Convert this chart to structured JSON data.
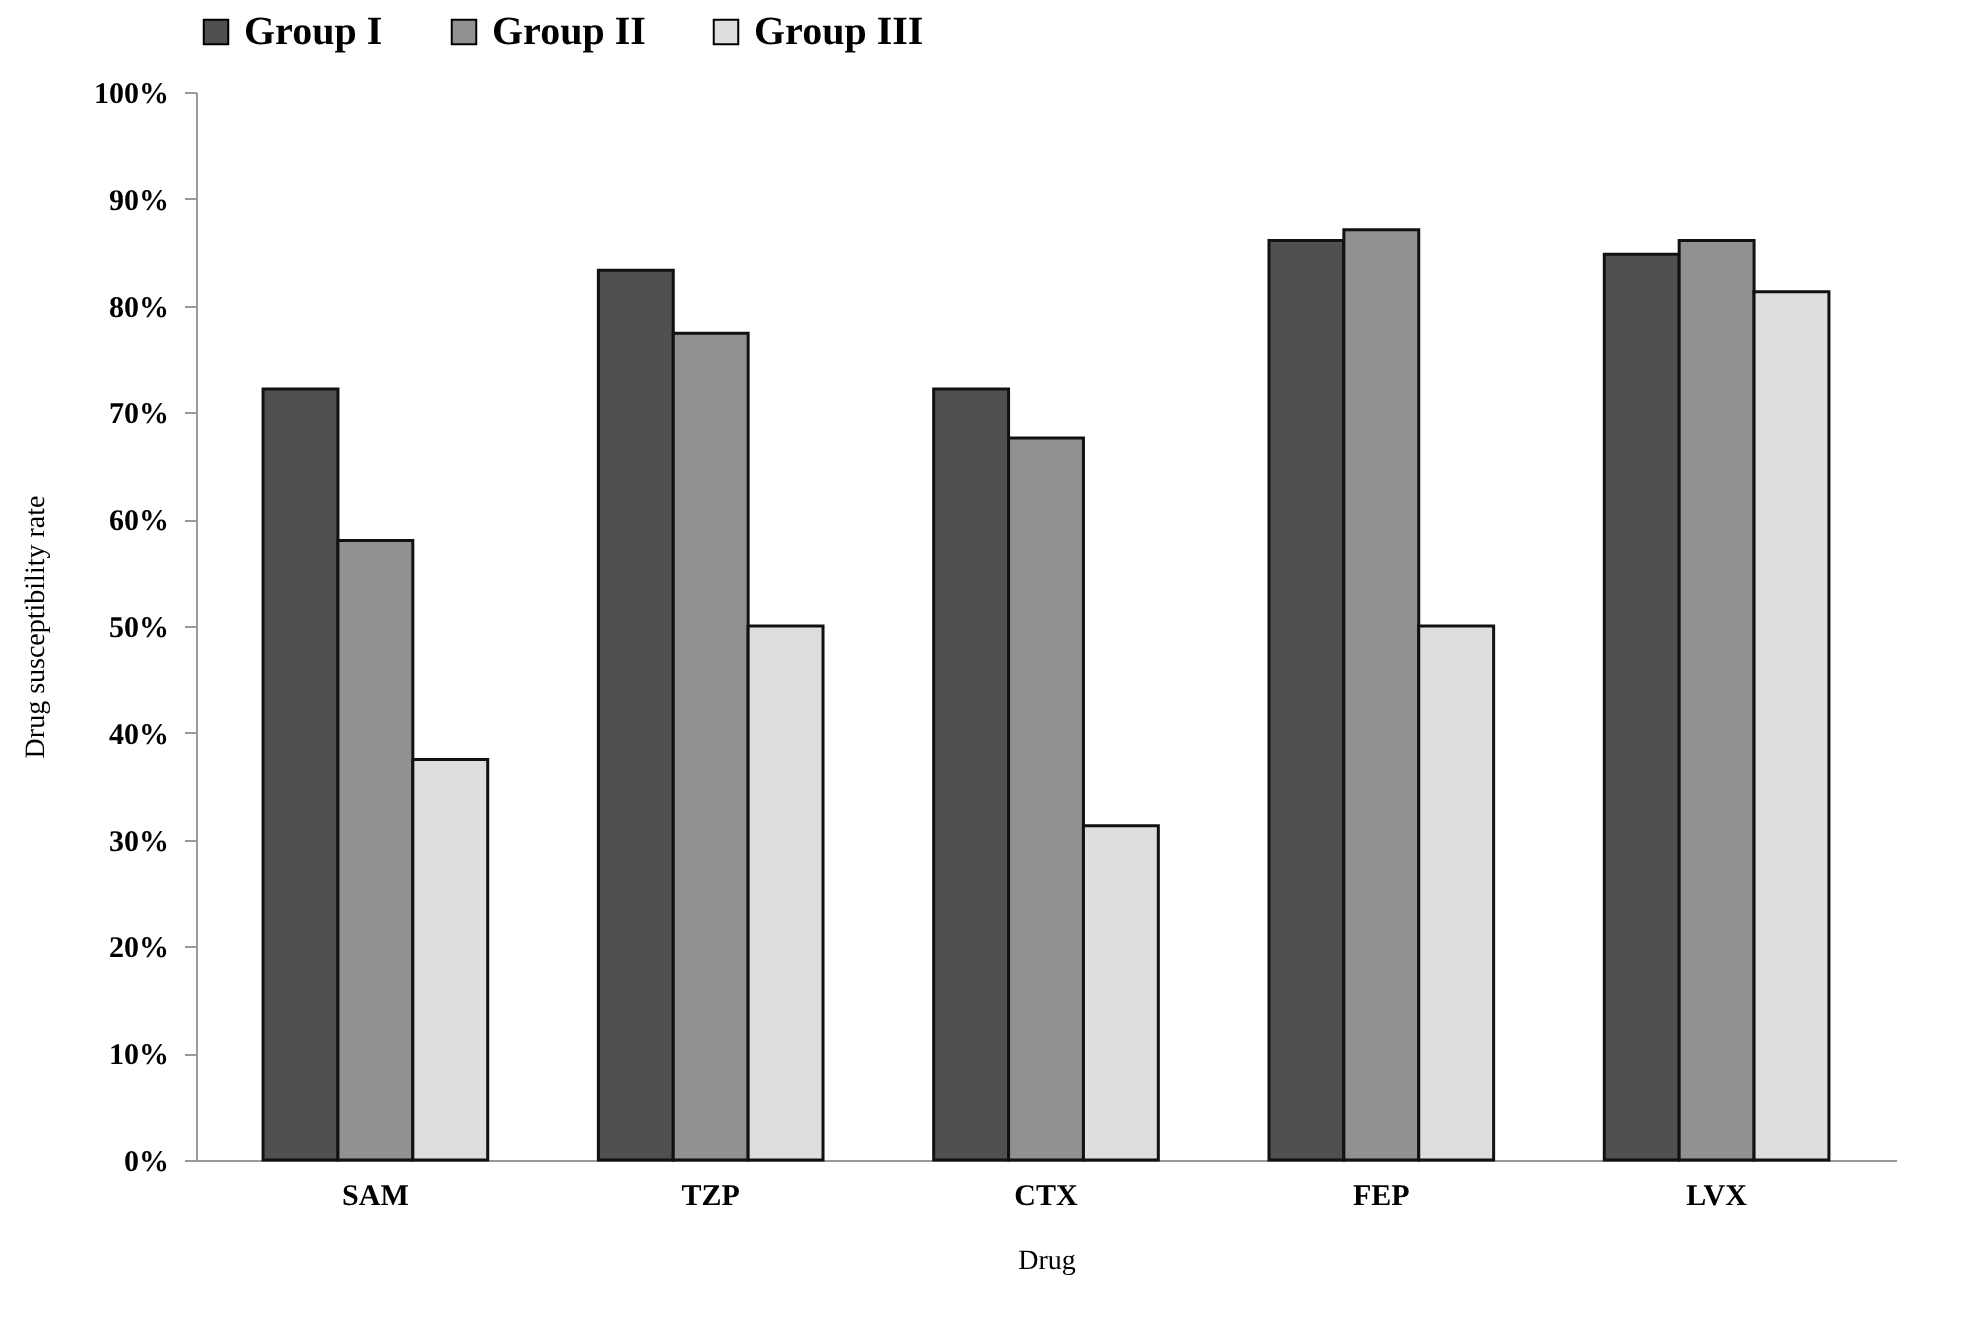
{
  "chart_data": {
    "type": "bar",
    "xlabel": "Drug",
    "ylabel": "Drug susceptibility rate",
    "categories": [
      "SAM",
      "TZP",
      "CTX",
      "FEP",
      "LVX"
    ],
    "series": [
      {
        "name": "Group I",
        "color": "#505050",
        "values": [
          72.2,
          83.3,
          72.2,
          86.1,
          84.8
        ]
      },
      {
        "name": "Group II",
        "color": "#919191",
        "values": [
          58,
          77.4,
          67.6,
          87.1,
          86.1
        ]
      },
      {
        "name": "Group III",
        "color": "#dedede",
        "values": [
          37.5,
          50,
          31.3,
          50,
          81.3
        ]
      }
    ],
    "ylim": [
      0,
      100
    ],
    "yticks": [
      {
        "value": 0,
        "label": "0%"
      },
      {
        "value": 10,
        "label": "10%"
      },
      {
        "value": 20,
        "label": "20%"
      },
      {
        "value": 30,
        "label": "30%"
      },
      {
        "value": 40,
        "label": "40%"
      },
      {
        "value": 50,
        "label": "50%"
      },
      {
        "value": 60,
        "label": "60%"
      },
      {
        "value": 70,
        "label": "70%"
      },
      {
        "value": 80,
        "label": "80%"
      },
      {
        "value": 90,
        "label": "90%"
      },
      {
        "value": 100,
        "label": "100%"
      }
    ],
    "legend": "top",
    "grid": false
  }
}
